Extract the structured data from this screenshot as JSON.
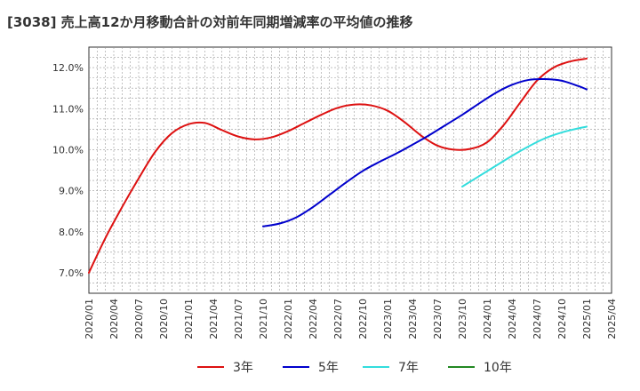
{
  "chart_data": {
    "type": "line",
    "title": "[3038]  売上高12か月移動合計の対前年同期増減率の平均値の推移",
    "xlabel": "",
    "ylabel": "",
    "ylim": [
      6.5,
      12.5
    ],
    "yticks": [
      7.0,
      8.0,
      9.0,
      10.0,
      11.0,
      12.0
    ],
    "ytick_labels": [
      "7.0%",
      "8.0%",
      "9.0%",
      "10.0%",
      "11.0%",
      "12.0%"
    ],
    "x_range": [
      "2020/01",
      "2025/04"
    ],
    "xtick_labels": [
      "2020/01",
      "2020/04",
      "2020/07",
      "2020/10",
      "2021/01",
      "2021/04",
      "2021/07",
      "2021/10",
      "2022/01",
      "2022/04",
      "2022/07",
      "2022/10",
      "2023/01",
      "2023/04",
      "2023/07",
      "2023/10",
      "2024/01",
      "2024/04",
      "2024/07",
      "2024/10",
      "2025/01",
      "2025/04"
    ],
    "grid": true,
    "legend_position": "bottom",
    "series": [
      {
        "name": "3年",
        "color": "#dd1111",
        "x": [
          "2020/01",
          "2020/03",
          "2020/05",
          "2020/07",
          "2020/09",
          "2020/11",
          "2021/01",
          "2021/03",
          "2021/05",
          "2021/07",
          "2021/09",
          "2021/11",
          "2022/01",
          "2022/03",
          "2022/05",
          "2022/07",
          "2022/09",
          "2022/11",
          "2023/01",
          "2023/03",
          "2023/05",
          "2023/07",
          "2023/09",
          "2023/11",
          "2024/01",
          "2024/03",
          "2024/05",
          "2024/07",
          "2024/09",
          "2024/11",
          "2025/01"
        ],
        "values": [
          7.0,
          7.85,
          8.6,
          9.3,
          9.95,
          10.4,
          10.62,
          10.65,
          10.48,
          10.32,
          10.25,
          10.3,
          10.45,
          10.65,
          10.85,
          11.02,
          11.1,
          11.08,
          10.95,
          10.68,
          10.35,
          10.1,
          10.0,
          10.02,
          10.18,
          10.6,
          11.15,
          11.68,
          12.0,
          12.15,
          12.22
        ]
      },
      {
        "name": "5年",
        "color": "#0000cc",
        "x": [
          "2021/10",
          "2021/12",
          "2022/02",
          "2022/04",
          "2022/06",
          "2022/08",
          "2022/10",
          "2022/12",
          "2023/02",
          "2023/04",
          "2023/06",
          "2023/08",
          "2023/10",
          "2023/12",
          "2024/02",
          "2024/04",
          "2024/06",
          "2024/08",
          "2024/10",
          "2024/12",
          "2025/01"
        ],
        "values": [
          8.13,
          8.2,
          8.35,
          8.6,
          8.9,
          9.2,
          9.48,
          9.7,
          9.9,
          10.12,
          10.35,
          10.6,
          10.85,
          11.12,
          11.38,
          11.58,
          11.7,
          11.72,
          11.68,
          11.55,
          11.47
        ]
      },
      {
        "name": "7年",
        "color": "#33dddd",
        "x": [
          "2023/10",
          "2023/12",
          "2024/02",
          "2024/04",
          "2024/06",
          "2024/08",
          "2024/10",
          "2024/12",
          "2025/01"
        ],
        "values": [
          9.1,
          9.35,
          9.6,
          9.85,
          10.08,
          10.28,
          10.42,
          10.52,
          10.56
        ]
      },
      {
        "name": "10年",
        "color": "#228822",
        "x": [],
        "values": []
      }
    ]
  }
}
